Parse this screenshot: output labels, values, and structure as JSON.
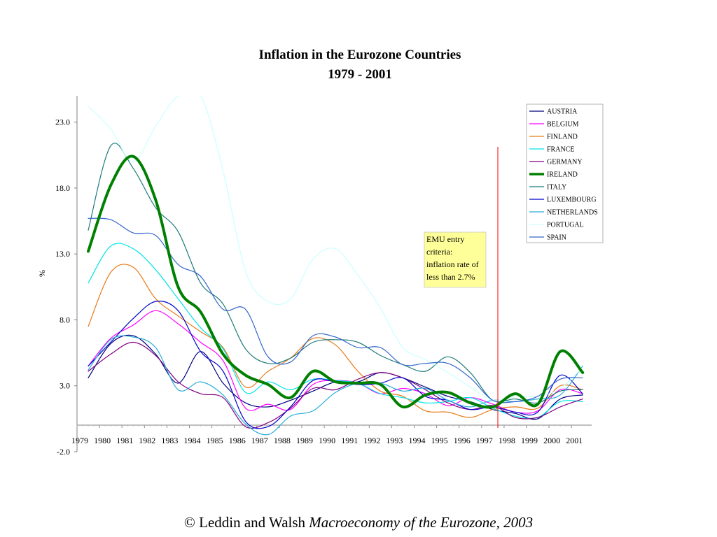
{
  "chart_data": {
    "type": "line",
    "title": [
      "Inflation in the Eurozone Countries",
      "1979 - 2001"
    ],
    "xlabel": "",
    "ylabel": "%",
    "x_domain": [
      1979.0,
      2001.9
    ],
    "ylim": [
      -2.0,
      25.0
    ],
    "y_ticks": [
      "23.0",
      "18.0",
      "13.0",
      "8.0",
      "3.0",
      "-2.0"
    ],
    "x_tick_labels": [
      "1979",
      "1980",
      "1981",
      "1982",
      "1983",
      "1984",
      "1985",
      "1986",
      "1987",
      "1988",
      "1989",
      "1990",
      "1991",
      "1992",
      "1993",
      "1994",
      "1995",
      "1996",
      "1997",
      "1998",
      "1999",
      "2000",
      "2001"
    ],
    "grid": false,
    "legend_position": "top-right",
    "annotation": {
      "lines": [
        "EMU entry",
        "criteria:",
        "inflation rate of",
        "less than 2.7%"
      ],
      "x": 1997.5
    },
    "series": [
      {
        "name": "AUSTRIA",
        "color": "#000080",
        "width": 1.2,
        "x": [
          1979,
          1980,
          1981,
          1982,
          1983,
          1984,
          1985,
          1986,
          1987,
          1988,
          1989,
          1990,
          1991,
          1992,
          1993,
          1994,
          1995,
          1996,
          1997,
          1998,
          1999,
          2000,
          2001
        ],
        "values": [
          3.6,
          6.2,
          6.8,
          5.4,
          3.2,
          5.6,
          3.2,
          1.7,
          1.4,
          1.9,
          2.6,
          3.3,
          3.3,
          4.0,
          3.6,
          2.9,
          2.2,
          1.8,
          1.2,
          0.9,
          0.5,
          2.0,
          2.3
        ]
      },
      {
        "name": "BELGIUM",
        "color": "#ff00ff",
        "width": 1.2,
        "x": [
          1979,
          1980,
          1981,
          1982,
          1983,
          1984,
          1985,
          1986,
          1987,
          1988,
          1989,
          1990,
          1991,
          1992,
          1993,
          1994,
          1995,
          1996,
          1997,
          1998,
          1999,
          2000,
          2001
        ],
        "values": [
          4.5,
          6.6,
          7.6,
          8.7,
          7.7,
          6.3,
          4.9,
          1.3,
          1.6,
          1.2,
          3.1,
          3.4,
          3.2,
          2.4,
          2.8,
          2.4,
          1.5,
          2.1,
          1.6,
          1.0,
          1.1,
          2.7,
          2.4
        ]
      },
      {
        "name": "FINLAND",
        "color": "#e87a18",
        "width": 1.2,
        "x": [
          1979,
          1980,
          1981,
          1982,
          1983,
          1984,
          1985,
          1986,
          1987,
          1988,
          1989,
          1990,
          1991,
          1992,
          1993,
          1994,
          1995,
          1996,
          1997,
          1998,
          1999,
          2000,
          2001
        ],
        "values": [
          7.5,
          11.6,
          12.0,
          9.6,
          8.3,
          7.1,
          5.9,
          2.9,
          4.1,
          5.1,
          6.6,
          6.1,
          4.1,
          2.6,
          2.2,
          1.1,
          1.0,
          0.6,
          1.2,
          1.4,
          1.3,
          3.0,
          2.7
        ]
      },
      {
        "name": "FRANCE",
        "color": "#00e5e5",
        "width": 1.2,
        "x": [
          1979,
          1980,
          1981,
          1982,
          1983,
          1984,
          1985,
          1986,
          1987,
          1988,
          1989,
          1990,
          1991,
          1992,
          1993,
          1994,
          1995,
          1996,
          1997,
          1998,
          1999,
          2000,
          2001
        ],
        "values": [
          10.8,
          13.6,
          13.4,
          11.8,
          9.6,
          7.4,
          5.8,
          2.5,
          3.3,
          2.7,
          3.5,
          3.4,
          3.2,
          2.4,
          2.1,
          1.7,
          1.8,
          2.1,
          1.3,
          0.7,
          0.6,
          1.8,
          1.8
        ]
      },
      {
        "name": "GERMANY",
        "color": "#800080",
        "width": 1.2,
        "x": [
          1979,
          1980,
          1981,
          1982,
          1983,
          1984,
          1985,
          1986,
          1987,
          1988,
          1989,
          1990,
          1991,
          1992,
          1993,
          1994,
          1995,
          1996,
          1997,
          1998,
          1999,
          2000,
          2001
        ],
        "values": [
          4.1,
          5.4,
          6.3,
          5.3,
          3.3,
          2.4,
          2.1,
          -0.1,
          0.2,
          1.3,
          2.8,
          2.7,
          3.5,
          4.0,
          3.6,
          2.7,
          1.7,
          1.2,
          1.5,
          0.6,
          0.6,
          1.4,
          2.0
        ]
      },
      {
        "name": "IRELAND",
        "color": "#008000",
        "width": 4,
        "x": [
          1979,
          1980,
          1981,
          1982,
          1983,
          1984,
          1985,
          1986,
          1987,
          1988,
          1989,
          1990,
          1991,
          1992,
          1993,
          1994,
          1995,
          1996,
          1997,
          1998,
          1999,
          2000,
          2001
        ],
        "values": [
          13.2,
          18.2,
          20.4,
          17.1,
          10.5,
          8.6,
          5.4,
          3.8,
          3.1,
          2.1,
          4.1,
          3.3,
          3.2,
          3.1,
          1.4,
          2.3,
          2.5,
          1.7,
          1.4,
          2.4,
          1.6,
          5.6,
          4.0
        ]
      },
      {
        "name": "ITALY",
        "color": "#1f7a7a",
        "width": 1.2,
        "x": [
          1979,
          1980,
          1981,
          1982,
          1983,
          1984,
          1985,
          1986,
          1987,
          1988,
          1989,
          1990,
          1991,
          1992,
          1993,
          1994,
          1995,
          1996,
          1997,
          1998,
          1999,
          2000,
          2001
        ],
        "values": [
          14.8,
          21.2,
          19.5,
          16.5,
          14.7,
          10.8,
          9.2,
          5.8,
          4.7,
          5.1,
          6.3,
          6.5,
          6.3,
          5.3,
          4.6,
          4.1,
          5.2,
          4.0,
          1.9,
          2.0,
          1.7,
          2.6,
          2.7
        ]
      },
      {
        "name": "LUXEMBOURG",
        "color": "#0000cc",
        "width": 1.2,
        "x": [
          1979,
          1980,
          1981,
          1982,
          1983,
          1984,
          1985,
          1986,
          1987,
          1988,
          1989,
          1990,
          1991,
          1992,
          1993,
          1994,
          1995,
          1996,
          1997,
          1998,
          1999,
          2000,
          2001
        ],
        "values": [
          4.5,
          6.3,
          8.1,
          9.4,
          8.7,
          5.6,
          4.1,
          0.3,
          -0.1,
          1.4,
          3.4,
          3.3,
          3.1,
          3.2,
          3.6,
          2.2,
          1.9,
          1.2,
          1.4,
          1.0,
          1.0,
          3.8,
          2.4
        ]
      },
      {
        "name": "NETHERLANDS",
        "color": "#2aaed8",
        "width": 1.2,
        "x": [
          1979,
          1980,
          1981,
          1982,
          1983,
          1984,
          1985,
          1986,
          1987,
          1988,
          1989,
          1990,
          1991,
          1992,
          1993,
          1994,
          1995,
          1996,
          1997,
          1998,
          1999,
          2000,
          2001
        ],
        "values": [
          4.2,
          6.5,
          6.7,
          5.9,
          2.7,
          3.3,
          2.3,
          0.1,
          -0.7,
          0.7,
          1.1,
          2.5,
          3.2,
          3.2,
          2.6,
          2.8,
          1.9,
          1.4,
          1.9,
          1.8,
          2.0,
          2.3,
          4.5
        ]
      },
      {
        "name": "PORTUGAL",
        "color": "#ccffff",
        "width": 1.2,
        "x": [
          1979,
          1980,
          1981,
          1982,
          1983,
          1984,
          1985,
          1986,
          1987,
          1988,
          1989,
          1990,
          1991,
          1992,
          1993,
          1994,
          1995,
          1996,
          1997,
          1998,
          1999,
          2000,
          2001
        ],
        "values": [
          24.2,
          22.5,
          20.0,
          22.7,
          25.0,
          25.0,
          19.3,
          11.7,
          9.4,
          9.6,
          12.6,
          13.4,
          11.4,
          8.9,
          5.9,
          5.0,
          4.0,
          2.9,
          1.9,
          2.2,
          2.2,
          2.8,
          4.4
        ]
      },
      {
        "name": "SPAIN",
        "color": "#3366cc",
        "width": 1.2,
        "x": [
          1979,
          1980,
          1981,
          1982,
          1983,
          1984,
          1985,
          1986,
          1987,
          1988,
          1989,
          1990,
          1991,
          1992,
          1993,
          1994,
          1995,
          1996,
          1997,
          1998,
          1999,
          2000,
          2001
        ],
        "values": [
          15.7,
          15.6,
          14.6,
          14.4,
          12.2,
          11.3,
          8.8,
          8.8,
          5.2,
          4.8,
          6.8,
          6.7,
          5.9,
          5.9,
          4.6,
          4.7,
          4.7,
          3.6,
          1.9,
          1.8,
          2.2,
          3.5,
          3.6
        ]
      }
    ]
  },
  "footer": {
    "prefix": "© Leddin and Walsh ",
    "italic": "Macroeconomy of the Eurozone, 2003"
  }
}
